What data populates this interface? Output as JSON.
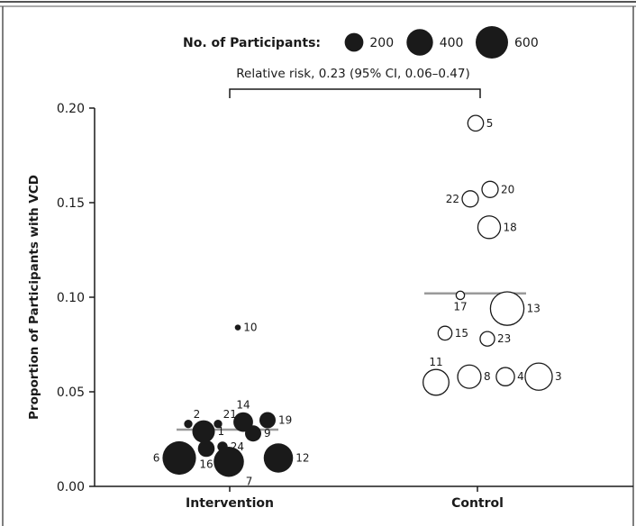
{
  "chart_data": {
    "type": "scatter",
    "legend": {
      "title": "No. of Participants:",
      "entries": [
        {
          "label": "200",
          "value": 200
        },
        {
          "label": "400",
          "value": 400
        },
        {
          "label": "600",
          "value": 600
        }
      ]
    },
    "annotation": "Relative risk, 0.23 (95% CI, 0.06–0.47)",
    "ylabel": "Proportion of Participants with VCD",
    "xlabel": "",
    "ylim": [
      0.0,
      0.2
    ],
    "yticks": [
      {
        "value": 0.0,
        "label": "0.00"
      },
      {
        "value": 0.05,
        "label": "0.05"
      },
      {
        "value": 0.1,
        "label": "0.10"
      },
      {
        "value": 0.15,
        "label": "0.15"
      },
      {
        "value": 0.2,
        "label": "0.20"
      }
    ],
    "categories": [
      "Intervention",
      "Control"
    ],
    "series": [
      {
        "group": "Intervention",
        "filled": true,
        "summary_line": 0.03,
        "points": [
          {
            "id": "10",
            "y": 0.084,
            "n": 20
          },
          {
            "id": "2",
            "y": 0.033,
            "n": 40
          },
          {
            "id": "21",
            "y": 0.033,
            "n": 40
          },
          {
            "id": "14",
            "y": 0.034,
            "n": 220
          },
          {
            "id": "19",
            "y": 0.035,
            "n": 150
          },
          {
            "id": "1",
            "y": 0.029,
            "n": 290
          },
          {
            "id": "9",
            "y": 0.028,
            "n": 150
          },
          {
            "id": "24",
            "y": 0.021,
            "n": 60
          },
          {
            "id": "16",
            "y": 0.02,
            "n": 160
          },
          {
            "id": "6",
            "y": 0.015,
            "n": 640
          },
          {
            "id": "7",
            "y": 0.013,
            "n": 520
          },
          {
            "id": "12",
            "y": 0.015,
            "n": 490
          }
        ]
      },
      {
        "group": "Control",
        "filled": false,
        "summary_line": 0.102,
        "points": [
          {
            "id": "5",
            "y": 0.192,
            "n": 140
          },
          {
            "id": "20",
            "y": 0.157,
            "n": 150
          },
          {
            "id": "22",
            "y": 0.152,
            "n": 150
          },
          {
            "id": "18",
            "y": 0.137,
            "n": 290
          },
          {
            "id": "17",
            "y": 0.101,
            "n": 40
          },
          {
            "id": "13",
            "y": 0.094,
            "n": 640
          },
          {
            "id": "15",
            "y": 0.081,
            "n": 110
          },
          {
            "id": "23",
            "y": 0.078,
            "n": 120
          },
          {
            "id": "11",
            "y": 0.055,
            "n": 380
          },
          {
            "id": "8",
            "y": 0.058,
            "n": 310
          },
          {
            "id": "4",
            "y": 0.058,
            "n": 190
          },
          {
            "id": "3",
            "y": 0.058,
            "n": 420
          }
        ]
      }
    ],
    "colors": {
      "ink": "#1a1a1a",
      "summary_line": "#9a9a9a",
      "frame": "#555555"
    }
  }
}
